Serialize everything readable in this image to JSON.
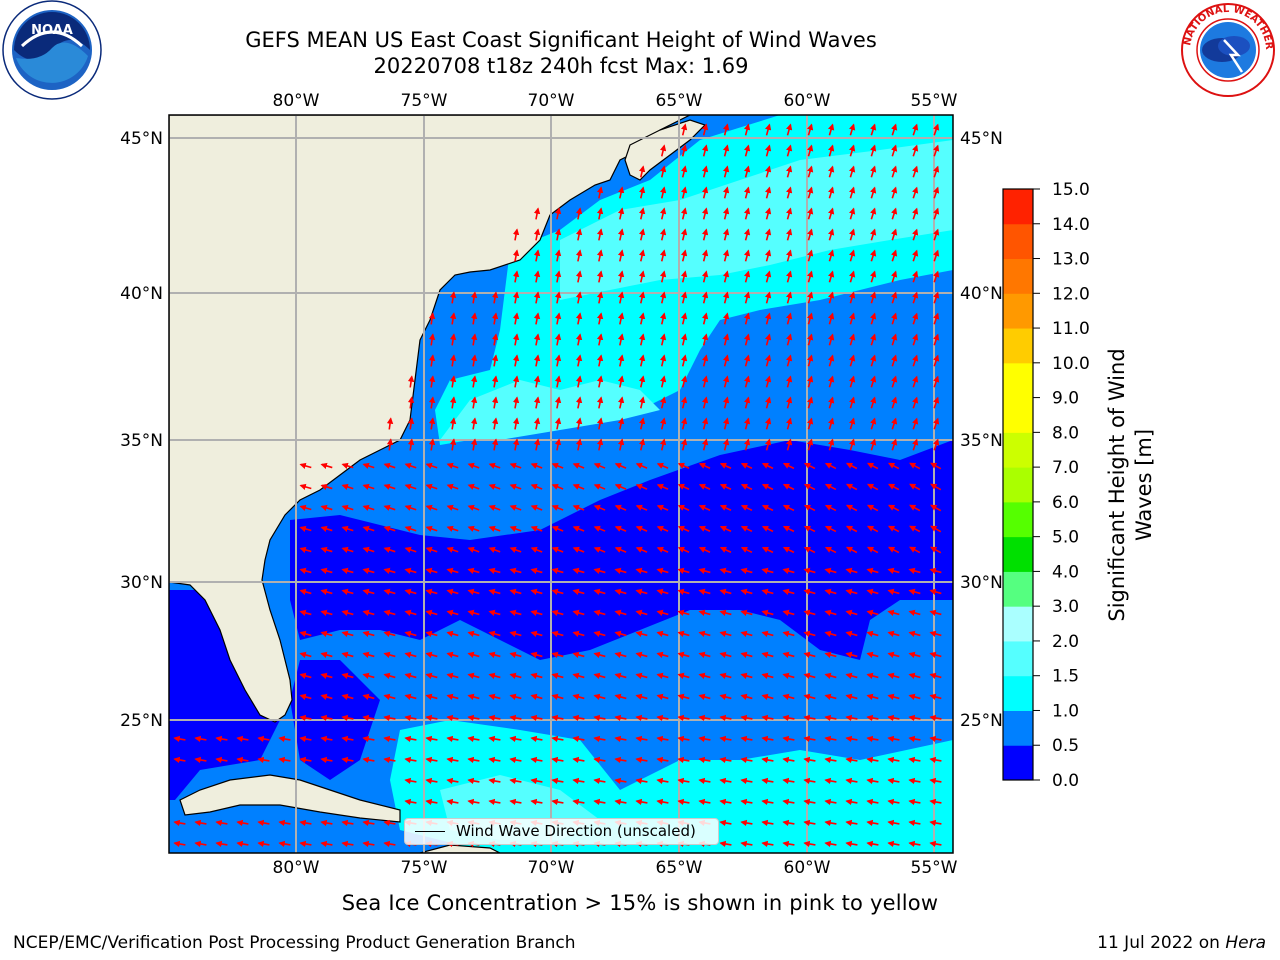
{
  "title": {
    "line1": "GEFS MEAN US East Coast Significant Height of Wind Waves",
    "line2": "20220708 t18z 240h fcst   Max: 1.69"
  },
  "map": {
    "lon_ticks": [
      "80°W",
      "75°W",
      "70°W",
      "65°W",
      "60°W",
      "55°W"
    ],
    "lat_ticks": [
      "45°N",
      "40°N",
      "35°N",
      "30°N",
      "25°N"
    ],
    "colors": {
      "land": "#efeedd",
      "ocean_0_05": "#0000ff",
      "ocean_05_10": "#0080ff",
      "ocean_10_15": "#00ffff",
      "ocean_15_20": "#55ffff",
      "gridline": "#b0b0b0",
      "arrow": "#ff0000",
      "coast": "#000000"
    },
    "legend_label": "Wind Wave Direction (unscaled)"
  },
  "colorbar": {
    "title": "Significant Height of Wind Waves [m]",
    "title_line1": "Significant Height of Wind",
    "title_line2": "Waves [m]",
    "tick_labels": [
      "0.0",
      "0.5",
      "1.0",
      "1.5",
      "2.0",
      "3.0",
      "4.0",
      "5.0",
      "6.0",
      "7.0",
      "8.0",
      "9.0",
      "10.0",
      "11.0",
      "12.0",
      "13.0",
      "14.0",
      "15.0"
    ],
    "colors": [
      "#0000ff",
      "#0080ff",
      "#00ffff",
      "#55ffff",
      "#aaffff",
      "#55ff80",
      "#00e000",
      "#55ff00",
      "#aaff00",
      "#ccff00",
      "#ffff00",
      "#ffff00",
      "#ffcc00",
      "#ff9900",
      "#ff7700",
      "#ff5500",
      "#ff2200"
    ]
  },
  "subnote": "Sea Ice Concentration > 15% is shown in pink to yellow",
  "footer": {
    "left": "NCEP/EMC/Verification Post Processing Product Generation Branch",
    "right_date": "11 Jul 2022 on ",
    "right_host": "Hera"
  }
}
